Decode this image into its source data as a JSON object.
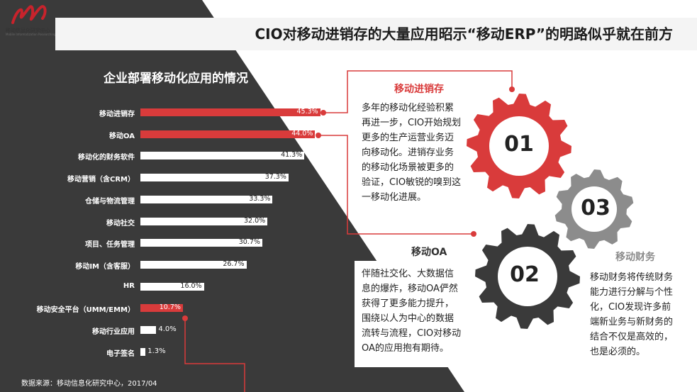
{
  "logo": {
    "text": "移动信息化研究中心",
    "sub": "Mobile Informatization Researching Center"
  },
  "title": "CIO对移动进销存的大量应用昭示“移动ERP”的明路似乎就在前方",
  "source": "数据来源：移动信息化研究中心，2017/04",
  "colors": {
    "accent": "#d93b3b",
    "dark": "#3a3a3a",
    "gear_gray": "#8c8c8c"
  },
  "chart_data": {
    "type": "bar",
    "title": "企业部署移动化应用的情况",
    "categories": [
      "移动进销存",
      "移动OA",
      "移动化的财务软件",
      "移动营销（含CRM）",
      "仓储与物流管理",
      "移动社交",
      "项目、任务管理",
      "移动IM（含客服）",
      "HR",
      "移动安全平台（UMM/EMM）",
      "移动行业应用",
      "电子签名"
    ],
    "values": [
      45.3,
      44.0,
      41.3,
      37.3,
      33.3,
      32.0,
      30.7,
      26.7,
      16.0,
      10.7,
      4.0,
      1.3
    ],
    "value_labels": [
      "45.3%",
      "44.0%",
      "41.3%",
      "37.3%",
      "33.3%",
      "32.0%",
      "30.7%",
      "26.7%",
      "16.0%",
      "10.7%",
      "4.0%",
      "1.3%"
    ],
    "highlighted": [
      true,
      true,
      false,
      false,
      false,
      false,
      false,
      false,
      false,
      true,
      false,
      false
    ],
    "xlim": [
      0,
      50
    ]
  },
  "sections": {
    "s01": {
      "num": "01",
      "title": "移动进销存",
      "text": "多年的移动化经验积累再进一步，CIO开始规划更多的生产运营业务迈向移动化。进销存业务的移动化场景被更多的验证，CIO敏锐的嗅到这一移动化进展。"
    },
    "s02": {
      "num": "02",
      "title": "移动OA",
      "text": "伴随社交化、大数据信息的爆炸，移动OA俨然获得了更多能力提升，围绕以人为中心的数据流转与流程，CIO对移动OA的应用抱有期待。"
    },
    "s03": {
      "num": "03",
      "title": "移动财务",
      "text": "移动财务将传统财务能力进行分解与个性化，CIO发现许多前端新业务与新财务的结合不仅是高效的，也是必须的。"
    }
  }
}
